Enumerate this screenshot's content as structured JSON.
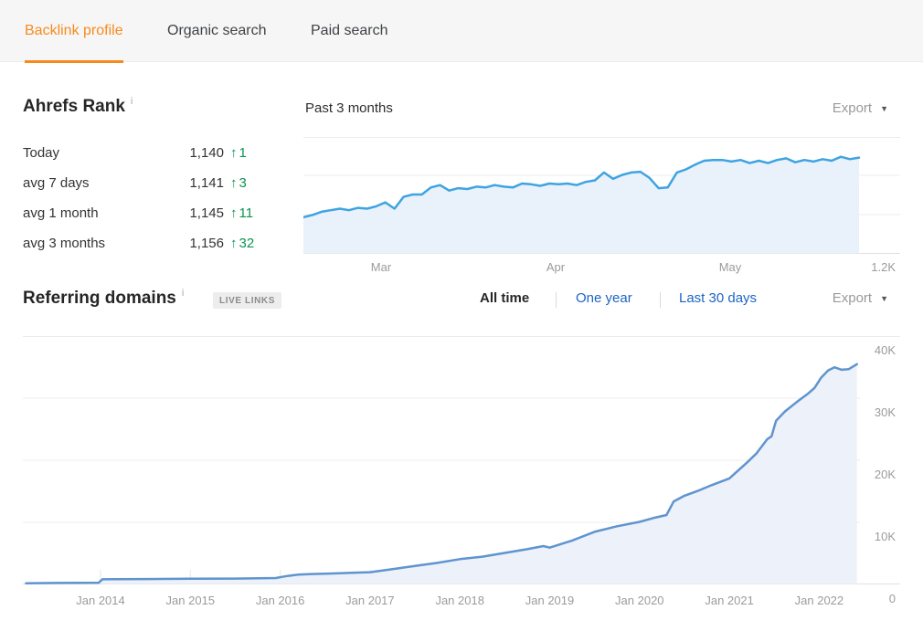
{
  "icons": {
    "info": "i",
    "up_arrow": "↑",
    "caret_down": "▼"
  },
  "colors": {
    "accent_orange": "#f78a1d",
    "positive_green": "#0c9450",
    "link_blue": "#1d64c4"
  },
  "tabs": [
    {
      "label": "Backlink profile",
      "active": true
    },
    {
      "label": "Organic search",
      "active": false
    },
    {
      "label": "Paid search",
      "active": false
    }
  ],
  "ahrefs_rank": {
    "title": "Ahrefs Rank",
    "rows": [
      {
        "label": "Today",
        "value": "1,140",
        "delta": "1"
      },
      {
        "label": "avg 7 days",
        "value": "1,141",
        "delta": "3"
      },
      {
        "label": "avg 1 month",
        "value": "1,145",
        "delta": "11"
      },
      {
        "label": "avg 3 months",
        "value": "1,156",
        "delta": "32"
      }
    ]
  },
  "rank_chart": {
    "title": "Past 3 months",
    "export_label": "Export"
  },
  "referring_domains": {
    "title": "Referring domains",
    "badge": "LIVE LINKS",
    "filters": [
      {
        "label": "All time",
        "selected": true
      },
      {
        "label": "One year",
        "selected": false
      },
      {
        "label": "Last 30 days",
        "selected": false
      }
    ],
    "export_label": "Export"
  },
  "chart_data": [
    {
      "name": "ahrefs-rank-past-3-months",
      "type": "area",
      "title": "Past 3 months",
      "x_tick_labels": [
        "Mar",
        "Apr",
        "May"
      ],
      "y_bottom_label": "1.2K",
      "y_bottom_value": 1200,
      "y_inverted_rank_axis": true,
      "grid": true,
      "line_color": "#3fa3e1",
      "fill_color": "#e9f2fb",
      "values": [
        1177,
        1175.5,
        1173.5,
        1172.5,
        1171.5,
        1172.5,
        1171,
        1171.5,
        1170,
        1167.5,
        1171.5,
        1164,
        1162.5,
        1162.5,
        1158,
        1156.5,
        1160,
        1158.5,
        1159,
        1157.5,
        1158,
        1156.5,
        1157.5,
        1158,
        1155.5,
        1156,
        1157,
        1155.5,
        1156,
        1155.5,
        1156.5,
        1154.5,
        1153.5,
        1148.5,
        1152.5,
        1150,
        1148.5,
        1148,
        1152,
        1158.5,
        1158,
        1148.5,
        1146.5,
        1143.5,
        1141,
        1140.5,
        1140.5,
        1141.5,
        1140.5,
        1142.5,
        1141,
        1142.5,
        1140.5,
        1139.5,
        1142,
        1140.5,
        1141.5,
        1140,
        1141,
        1138.5,
        1140,
        1139
      ]
    },
    {
      "name": "referring-domains-all-time",
      "type": "area",
      "title": "Referring domains",
      "x_tick_labels": [
        "Jan 2014",
        "Jan 2015",
        "Jan 2016",
        "Jan 2017",
        "Jan 2018",
        "Jan 2019",
        "Jan 2020",
        "Jan 2021",
        "Jan 2022"
      ],
      "y_tick_labels": [
        "40K",
        "30K",
        "20K",
        "10K",
        "0"
      ],
      "ylim": [
        0,
        40000
      ],
      "grid": true,
      "line_color": "#5f94cf",
      "fill_color": "#edf1f9",
      "points": [
        [
          2013.17,
          120
        ],
        [
          2013.5,
          160
        ],
        [
          2013.98,
          200
        ],
        [
          2014.02,
          750
        ],
        [
          2014.5,
          800
        ],
        [
          2015.0,
          850
        ],
        [
          2015.5,
          870
        ],
        [
          2015.95,
          950
        ],
        [
          2016.08,
          1300
        ],
        [
          2016.2,
          1500
        ],
        [
          2016.35,
          1600
        ],
        [
          2016.5,
          1650
        ],
        [
          2016.7,
          1750
        ],
        [
          2017.0,
          1900
        ],
        [
          2017.25,
          2400
        ],
        [
          2017.5,
          2900
        ],
        [
          2017.75,
          3400
        ],
        [
          2018.0,
          4000
        ],
        [
          2018.25,
          4400
        ],
        [
          2018.5,
          5000
        ],
        [
          2018.75,
          5600
        ],
        [
          2018.93,
          6100
        ],
        [
          2019.0,
          5850
        ],
        [
          2019.25,
          7000
        ],
        [
          2019.5,
          8400
        ],
        [
          2019.75,
          9300
        ],
        [
          2020.0,
          10000
        ],
        [
          2020.15,
          10600
        ],
        [
          2020.3,
          11100
        ],
        [
          2020.38,
          13300
        ],
        [
          2020.5,
          14200
        ],
        [
          2020.65,
          15000
        ],
        [
          2020.8,
          15900
        ],
        [
          2021.0,
          17000
        ],
        [
          2021.1,
          18300
        ],
        [
          2021.2,
          19600
        ],
        [
          2021.3,
          21000
        ],
        [
          2021.42,
          23300
        ],
        [
          2021.47,
          23800
        ],
        [
          2021.52,
          26300
        ],
        [
          2021.62,
          27800
        ],
        [
          2021.75,
          29300
        ],
        [
          2021.88,
          30700
        ],
        [
          2021.95,
          31600
        ],
        [
          2022.02,
          33200
        ],
        [
          2022.1,
          34400
        ],
        [
          2022.17,
          34900
        ],
        [
          2022.25,
          34500
        ],
        [
          2022.33,
          34600
        ],
        [
          2022.42,
          35400
        ]
      ]
    }
  ]
}
